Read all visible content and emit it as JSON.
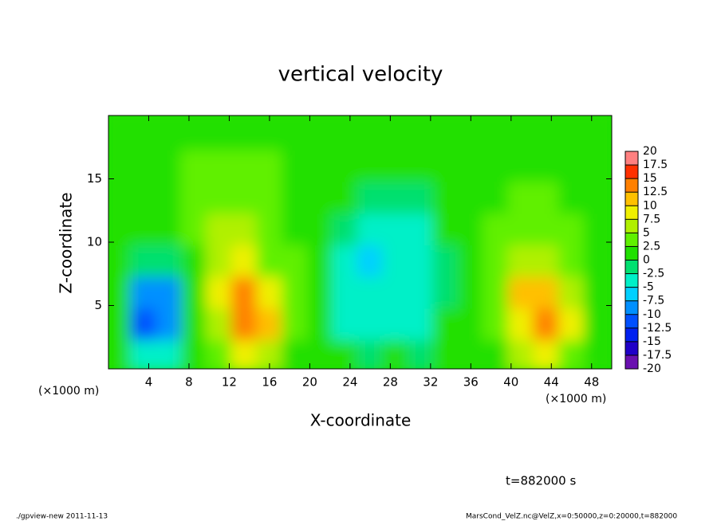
{
  "chart_data": {
    "type": "heatmap",
    "title": "vertical velocity",
    "xlabel": "X-coordinate",
    "ylabel": "Z-coordinate",
    "xunit_label": "(×1000 m)",
    "yunit_label": "(×1000 m)",
    "xlim": [
      0,
      50
    ],
    "ylim": [
      0,
      20
    ],
    "xticks": [
      4,
      8,
      12,
      16,
      20,
      24,
      28,
      32,
      36,
      40,
      44,
      48
    ],
    "yticks": [
      5,
      10,
      15
    ],
    "x": [
      1.25,
      3.75,
      6.25,
      8.75,
      11.25,
      13.75,
      16.25,
      18.75,
      21.25,
      23.75,
      26.25,
      28.75,
      31.25,
      33.75,
      36.25,
      38.75,
      41.25,
      43.75,
      46.25,
      48.75
    ],
    "y": [
      1.25,
      3.75,
      6.25,
      8.75,
      11.25,
      13.75,
      16.25,
      18.75
    ],
    "values": [
      [
        1,
        -4,
        -3,
        1,
        4,
        8,
        5,
        2,
        1,
        0,
        -2,
        1,
        -1,
        0,
        1,
        2,
        5,
        8,
        4,
        1
      ],
      [
        1,
        -12,
        -8,
        1,
        6,
        14,
        10,
        3,
        1,
        -3,
        -5,
        -4,
        -5,
        0,
        1,
        3,
        9,
        13,
        8,
        2
      ],
      [
        1,
        -10,
        -8,
        1,
        8,
        13,
        8,
        3,
        1,
        -4,
        -5,
        -5,
        -4,
        -1,
        1,
        3,
        10,
        12,
        5,
        2
      ],
      [
        1,
        -2,
        -1,
        2,
        7,
        8,
        4,
        3,
        1,
        -3,
        -6,
        -5,
        -5,
        -1,
        1,
        3,
        7,
        6,
        3,
        2
      ],
      [
        2,
        1,
        2,
        3,
        5,
        5,
        3,
        2,
        1,
        -1,
        -4,
        -3,
        -5,
        0,
        1,
        3,
        4,
        4,
        3,
        2
      ],
      [
        2,
        2,
        2,
        3,
        4,
        4,
        3,
        2,
        1,
        0,
        -1,
        -1,
        -1,
        1,
        1,
        2,
        3,
        3,
        2,
        2
      ],
      [
        1,
        1,
        2,
        3,
        3,
        3,
        3,
        2,
        1,
        1,
        0,
        0,
        0,
        1,
        1,
        2,
        2,
        2,
        2,
        1
      ],
      [
        1,
        1,
        1,
        2,
        2,
        2,
        2,
        1,
        1,
        1,
        1,
        1,
        1,
        1,
        1,
        1,
        1,
        1,
        1,
        1
      ]
    ],
    "clevels": [
      -20,
      -17.5,
      -15,
      -12.5,
      -10,
      -7.5,
      -5,
      -2.5,
      0,
      2.5,
      5,
      7.5,
      10,
      12.5,
      15,
      17.5,
      20
    ],
    "colors": [
      "#6a10b0",
      "#2000c8",
      "#0020f0",
      "#0050ff",
      "#0090ff",
      "#00d0ff",
      "#00f0c8",
      "#00e070",
      "#20e000",
      "#60f000",
      "#b0f000",
      "#f0f000",
      "#ffc000",
      "#ff8000",
      "#ff3000",
      "#ff8080"
    ],
    "time_label": "t=882000 s",
    "footer_left": "./gpview-new  2011-11-13",
    "footer_right": "MarsCond_VelZ.nc@VelZ,x=0:50000,z=0:20000,t=882000"
  }
}
